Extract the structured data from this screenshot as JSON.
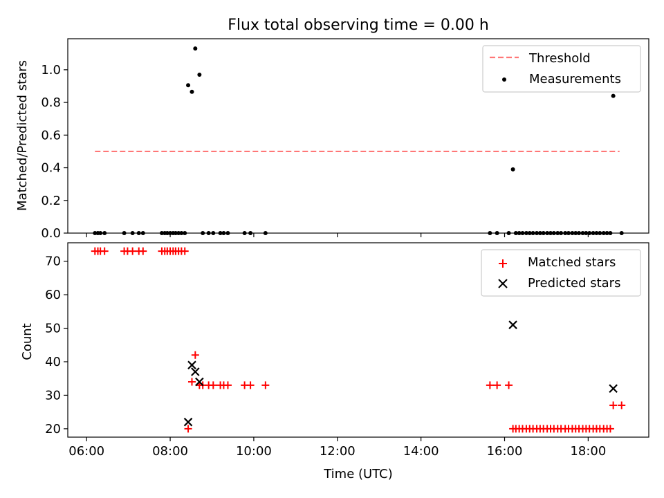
{
  "figure": {
    "title": "Flux total observing time = 0.00 h"
  },
  "chart_data": [
    {
      "type": "scatter",
      "panel": "top",
      "xlabel": "",
      "ylabel": "Matched/Predicted stars",
      "xlim_hours": [
        5.55,
        19.45
      ],
      "ylim": [
        0.0,
        1.19
      ],
      "yticks": [
        0.0,
        0.2,
        0.4,
        0.6,
        0.8,
        1.0
      ],
      "ytick_labels": [
        "0.0",
        "0.2",
        "0.4",
        "0.6",
        "0.8",
        "1.0"
      ],
      "xticks_hours": [
        6,
        8,
        10,
        12,
        14,
        16,
        18
      ],
      "show_xtick_labels": false,
      "grid": false,
      "legend_position": "top-right",
      "threshold": {
        "name": "Threshold",
        "value": 0.5,
        "x_range_hours": [
          6.2,
          18.75
        ],
        "color": "#ff7777",
        "style": "dashed"
      },
      "series": [
        {
          "name": "Measurements",
          "marker": "dot",
          "color": "#000000",
          "points": [
            [
              6.2,
              0
            ],
            [
              6.27,
              0
            ],
            [
              6.33,
              0
            ],
            [
              6.43,
              0
            ],
            [
              6.9,
              0
            ],
            [
              7.1,
              0
            ],
            [
              7.25,
              0
            ],
            [
              7.35,
              0
            ],
            [
              7.8,
              0
            ],
            [
              7.87,
              0
            ],
            [
              7.93,
              0
            ],
            [
              8.0,
              0
            ],
            [
              8.07,
              0
            ],
            [
              8.13,
              0
            ],
            [
              8.2,
              0
            ],
            [
              8.27,
              0
            ],
            [
              8.35,
              0
            ],
            [
              8.43,
              0.905
            ],
            [
              8.52,
              0.865
            ],
            [
              8.6,
              1.13
            ],
            [
              8.7,
              0.97
            ],
            [
              8.78,
              0
            ],
            [
              8.92,
              0
            ],
            [
              9.03,
              0
            ],
            [
              9.2,
              0
            ],
            [
              9.28,
              0
            ],
            [
              9.38,
              0
            ],
            [
              9.78,
              0
            ],
            [
              9.92,
              0
            ],
            [
              10.28,
              0
            ],
            [
              15.65,
              0
            ],
            [
              15.82,
              0
            ],
            [
              16.1,
              0
            ],
            [
              16.2,
              0.39
            ],
            [
              16.27,
              0
            ],
            [
              16.35,
              0
            ],
            [
              16.43,
              0
            ],
            [
              16.52,
              0
            ],
            [
              16.6,
              0
            ],
            [
              16.68,
              0
            ],
            [
              16.77,
              0
            ],
            [
              16.85,
              0
            ],
            [
              16.93,
              0
            ],
            [
              17.02,
              0
            ],
            [
              17.1,
              0
            ],
            [
              17.18,
              0
            ],
            [
              17.27,
              0
            ],
            [
              17.35,
              0
            ],
            [
              17.45,
              0
            ],
            [
              17.53,
              0
            ],
            [
              17.62,
              0
            ],
            [
              17.7,
              0
            ],
            [
              17.78,
              0
            ],
            [
              17.87,
              0
            ],
            [
              17.95,
              0
            ],
            [
              18.03,
              0
            ],
            [
              18.12,
              0
            ],
            [
              18.2,
              0
            ],
            [
              18.28,
              0
            ],
            [
              18.37,
              0
            ],
            [
              18.45,
              0
            ],
            [
              18.53,
              0
            ],
            [
              18.6,
              0.84
            ],
            [
              18.8,
              0
            ]
          ]
        }
      ]
    },
    {
      "type": "scatter",
      "panel": "bottom",
      "xlabel": "Time (UTC)",
      "ylabel": "Count",
      "xlim_hours": [
        5.55,
        19.45
      ],
      "ylim": [
        17.5,
        75.5
      ],
      "yticks": [
        20,
        30,
        40,
        50,
        60,
        70
      ],
      "ytick_labels": [
        "20",
        "30",
        "40",
        "50",
        "60",
        "70"
      ],
      "xticks_hours": [
        6,
        8,
        10,
        12,
        14,
        16,
        18
      ],
      "xtick_labels": [
        "06:00",
        "08:00",
        "10:00",
        "12:00",
        "14:00",
        "16:00",
        "18:00"
      ],
      "grid": false,
      "legend_position": "top-right",
      "series": [
        {
          "name": "Matched stars",
          "marker": "plus",
          "color": "#ff0000",
          "points": [
            [
              6.2,
              73
            ],
            [
              6.27,
              73
            ],
            [
              6.33,
              73
            ],
            [
              6.43,
              73
            ],
            [
              6.9,
              73
            ],
            [
              6.98,
              73
            ],
            [
              7.1,
              73
            ],
            [
              7.25,
              73
            ],
            [
              7.35,
              73
            ],
            [
              7.8,
              73
            ],
            [
              7.87,
              73
            ],
            [
              7.93,
              73
            ],
            [
              8.0,
              73
            ],
            [
              8.07,
              73
            ],
            [
              8.13,
              73
            ],
            [
              8.2,
              73
            ],
            [
              8.27,
              73
            ],
            [
              8.35,
              73
            ],
            [
              8.43,
              20
            ],
            [
              8.52,
              34
            ],
            [
              8.6,
              42
            ],
            [
              8.7,
              33
            ],
            [
              8.78,
              33
            ],
            [
              8.92,
              33
            ],
            [
              9.03,
              33
            ],
            [
              9.2,
              33
            ],
            [
              9.28,
              33
            ],
            [
              9.38,
              33
            ],
            [
              9.78,
              33
            ],
            [
              9.92,
              33
            ],
            [
              10.28,
              33
            ],
            [
              15.65,
              33
            ],
            [
              15.82,
              33
            ],
            [
              16.1,
              33
            ],
            [
              16.2,
              20
            ],
            [
              16.27,
              20
            ],
            [
              16.35,
              20
            ],
            [
              16.43,
              20
            ],
            [
              16.52,
              20
            ],
            [
              16.6,
              20
            ],
            [
              16.68,
              20
            ],
            [
              16.77,
              20
            ],
            [
              16.85,
              20
            ],
            [
              16.93,
              20
            ],
            [
              17.02,
              20
            ],
            [
              17.1,
              20
            ],
            [
              17.18,
              20
            ],
            [
              17.27,
              20
            ],
            [
              17.35,
              20
            ],
            [
              17.45,
              20
            ],
            [
              17.53,
              20
            ],
            [
              17.62,
              20
            ],
            [
              17.7,
              20
            ],
            [
              17.78,
              20
            ],
            [
              17.87,
              20
            ],
            [
              17.95,
              20
            ],
            [
              18.03,
              20
            ],
            [
              18.12,
              20
            ],
            [
              18.2,
              20
            ],
            [
              18.28,
              20
            ],
            [
              18.37,
              20
            ],
            [
              18.45,
              20
            ],
            [
              18.53,
              20
            ],
            [
              18.6,
              27
            ],
            [
              18.8,
              27
            ]
          ]
        },
        {
          "name": "Predicted stars",
          "marker": "x",
          "color": "#000000",
          "points": [
            [
              8.43,
              22
            ],
            [
              8.52,
              39
            ],
            [
              8.6,
              37
            ],
            [
              8.7,
              34
            ],
            [
              16.2,
              51
            ],
            [
              18.6,
              32
            ]
          ]
        }
      ]
    }
  ]
}
